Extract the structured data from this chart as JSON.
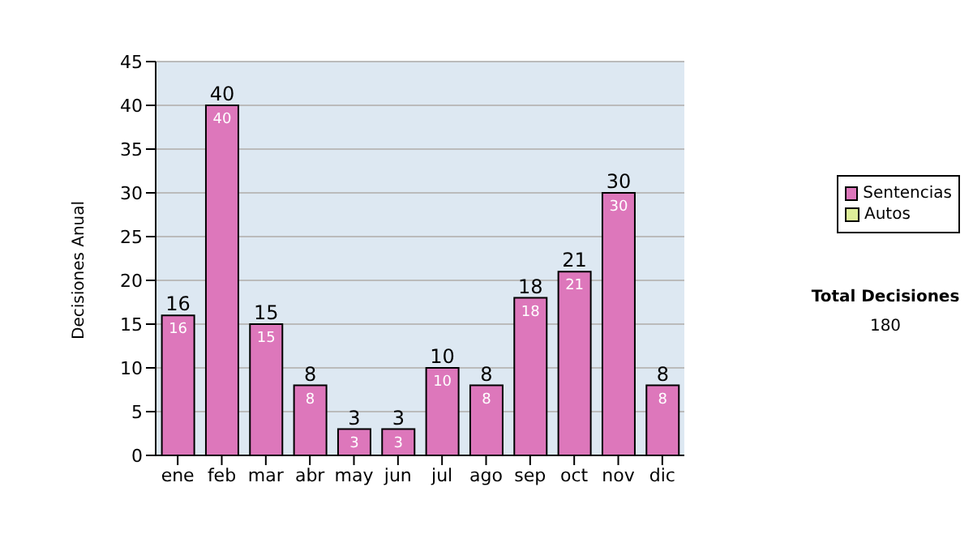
{
  "chart_data": {
    "type": "bar",
    "stacked": true,
    "ylabel": "Decisiones Anual",
    "categories": [
      "ene",
      "feb",
      "mar",
      "abr",
      "may",
      "jun",
      "jul",
      "ago",
      "sep",
      "oct",
      "nov",
      "dic"
    ],
    "series": [
      {
        "name": "Sentencias",
        "color": "#dd77bb",
        "values": [
          16,
          40,
          15,
          8,
          3,
          3,
          10,
          8,
          18,
          21,
          30,
          8
        ],
        "value_labels": [
          "16",
          "40",
          "15",
          "8",
          "3",
          "3",
          "10",
          "8",
          "18",
          "21",
          "30",
          "8"
        ]
      },
      {
        "name": "Autos",
        "color": "#ddee99",
        "values": [
          0,
          0,
          0,
          0,
          0,
          0,
          0,
          0,
          0,
          0,
          0,
          0
        ]
      }
    ],
    "totals": [
      "16",
      "40",
      "15",
      "8",
      "3",
      "3",
      "10",
      "8",
      "18",
      "21",
      "30",
      "8"
    ],
    "ylim": [
      0,
      45
    ],
    "yticks": [
      0,
      5,
      10,
      15,
      20,
      25,
      30,
      35,
      40,
      45
    ],
    "grid": "y",
    "legend": "right",
    "annotations": [
      "Total Decisiones",
      "180"
    ]
  }
}
